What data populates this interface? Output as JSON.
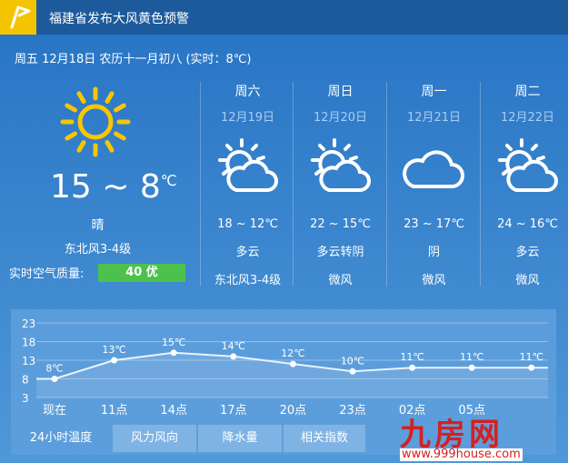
{
  "alert": {
    "icon": "flag-icon",
    "text": "福建省发布大风黄色预警"
  },
  "today": {
    "line": "周五 12月18日 农历十一月初八 (实时：8℃)",
    "icon": "sun-icon",
    "temp": "15 ~ 8",
    "unit": "℃",
    "weather": "晴",
    "wind": "东北风3-4级",
    "aqi_label": "实时空气质量:",
    "aqi_value": "40 优",
    "aqi_color": "#4cc24c"
  },
  "forecast": [
    {
      "weekday": "周六",
      "date": "12月19日",
      "icon": "partly-cloudy-icon",
      "temp": "18 ~ 12℃",
      "weather": "多云",
      "wind": "东北风3-4级"
    },
    {
      "weekday": "周日",
      "date": "12月20日",
      "icon": "partly-cloudy-icon",
      "temp": "22 ~ 15℃",
      "weather": "多云转阴",
      "wind": "微风"
    },
    {
      "weekday": "周一",
      "date": "12月21日",
      "icon": "cloud-icon",
      "temp": "23 ~ 17℃",
      "weather": "阴",
      "wind": "微风"
    },
    {
      "weekday": "周二",
      "date": "12月22日",
      "icon": "partly-cloudy-icon",
      "temp": "24 ~ 16℃",
      "weather": "多云",
      "wind": "微风"
    }
  ],
  "chart_data": {
    "type": "line",
    "y_ticks": [
      "23",
      "18",
      "13",
      "8",
      "3"
    ],
    "ylim": [
      3,
      23
    ],
    "categories": [
      "现在",
      "11点",
      "14点",
      "17点",
      "20点",
      "23点",
      "02点",
      "05点",
      ""
    ],
    "values": [
      8,
      13,
      15,
      14,
      12,
      10,
      11,
      11,
      11
    ],
    "labels": [
      "8℃",
      "13℃",
      "15℃",
      "14℃",
      "12℃",
      "10℃",
      "11℃",
      "11℃",
      "11℃"
    ],
    "grid": true
  },
  "tabs": [
    {
      "label": "24小时温度",
      "active": true
    },
    {
      "label": "风力风向"
    },
    {
      "label": "降水量"
    },
    {
      "label": "相关指数"
    }
  ],
  "watermark": {
    "text": "九房网",
    "url": "www.999house.com"
  }
}
